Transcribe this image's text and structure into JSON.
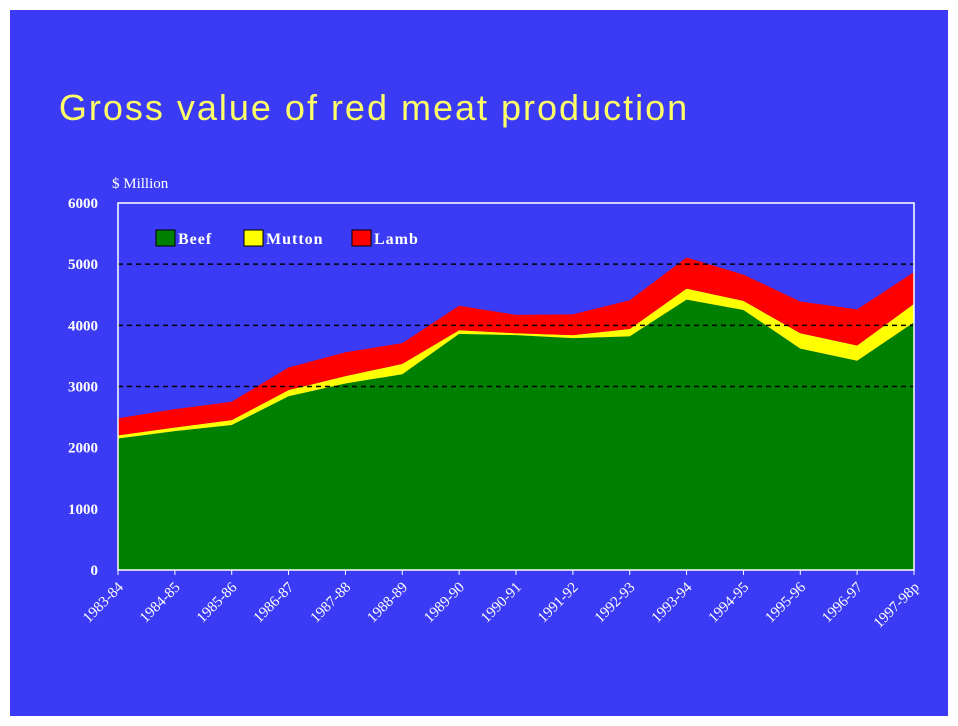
{
  "chart_data": {
    "type": "area",
    "stacked": true,
    "title": "Gross value of red meat production",
    "ylabel": "$ Million",
    "xlabel": "",
    "ylim": [
      0,
      6000
    ],
    "yticks": [
      0,
      1000,
      2000,
      3000,
      4000,
      5000,
      6000
    ],
    "gridlines": [
      3000,
      4000,
      5000
    ],
    "legend_position": "top-left",
    "categories": [
      "1983-84",
      "1984-85",
      "1985-86",
      "1986-87",
      "1987-88",
      "1988-89",
      "1989-90",
      "1990-91",
      "1991-92",
      "1992-93",
      "1993-94",
      "1994-95",
      "1995-96",
      "1996-97",
      "1997-98p"
    ],
    "series": [
      {
        "name": "Beef",
        "color": "#008000",
        "values": [
          2150,
          2270,
          2370,
          2840,
          3050,
          3200,
          3860,
          3840,
          3790,
          3820,
          4420,
          4250,
          3620,
          3420,
          4050
        ]
      },
      {
        "name": "Mutton",
        "color": "#ffff00",
        "values": [
          50,
          60,
          80,
          100,
          120,
          170,
          60,
          30,
          50,
          120,
          180,
          150,
          250,
          250,
          300
        ]
      },
      {
        "name": "Lamb",
        "color": "#ff0000",
        "values": [
          280,
          300,
          300,
          370,
          390,
          340,
          400,
          300,
          340,
          470,
          510,
          430,
          520,
          590,
          520
        ]
      }
    ]
  },
  "colors": {
    "background": "#3b3bf5",
    "title": "#ffff66",
    "text": "#ffffff",
    "axis": "#ffffff",
    "gridline": "#000000"
  }
}
